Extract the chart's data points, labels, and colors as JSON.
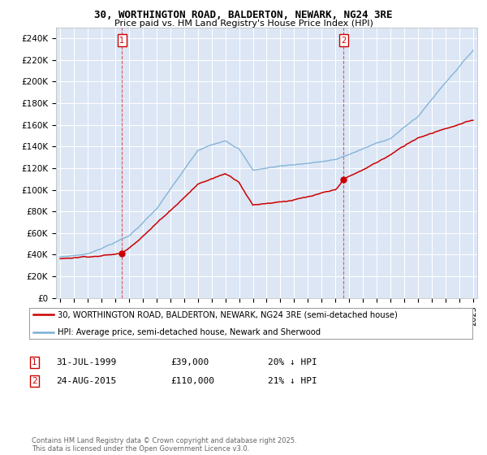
{
  "title1": "30, WORTHINGTON ROAD, BALDERTON, NEWARK, NG24 3RE",
  "title2": "Price paid vs. HM Land Registry's House Price Index (HPI)",
  "background_color": "#dce6f5",
  "grid_color": "#ffffff",
  "hpi_color": "#7bafd4",
  "price_color": "#cc0000",
  "marker1_year": 1999.58,
  "marker2_year": 2015.64,
  "marker1_value": 39000,
  "marker2_value": 110000,
  "marker1_label": "1",
  "marker2_label": "2",
  "marker1_date": "31-JUL-1999",
  "marker1_price": "£39,000",
  "marker1_hpi": "20% ↓ HPI",
  "marker2_date": "24-AUG-2015",
  "marker2_price": "£110,000",
  "marker2_hpi": "21% ↓ HPI",
  "legend_line1": "30, WORTHINGTON ROAD, BALDERTON, NEWARK, NG24 3RE (semi-detached house)",
  "legend_line2": "HPI: Average price, semi-detached house, Newark and Sherwood",
  "footer": "Contains HM Land Registry data © Crown copyright and database right 2025.\nThis data is licensed under the Open Government Licence v3.0.",
  "ylim_max": 250000,
  "ylim_min": 0,
  "xlim_min": 1994.7,
  "xlim_max": 2025.3
}
